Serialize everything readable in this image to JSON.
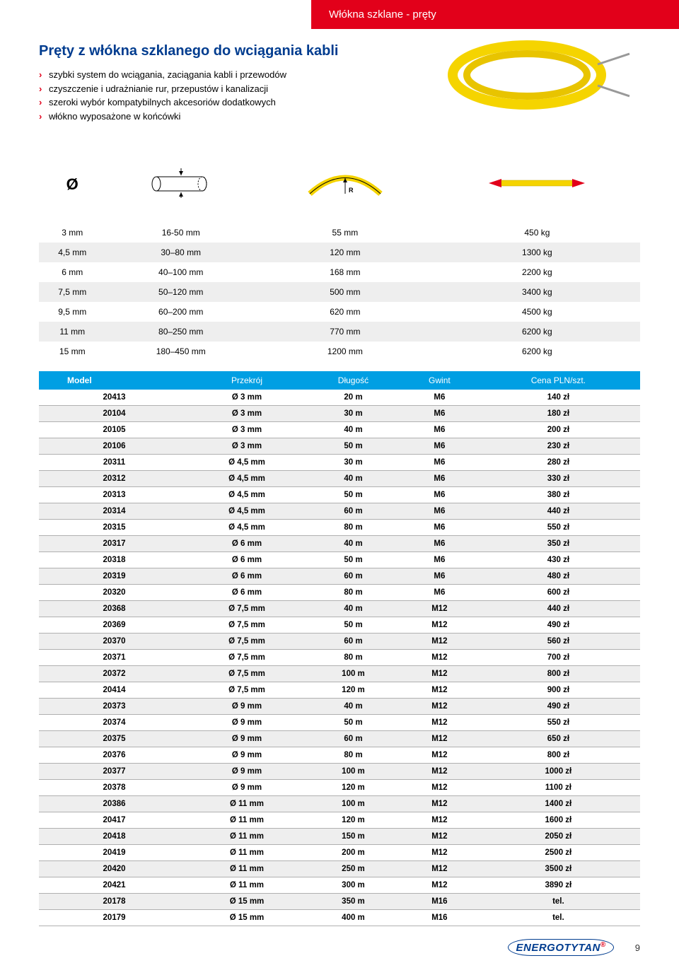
{
  "header_tab": "Włókna szklane - pręty",
  "title": "Pręty z włókna szklanego do wciągania kabli",
  "bullets": [
    "szybki system do wciągania, zaciągania kabli i przewodów",
    "czyszczenie i udrażnianie rur, przepustów i kanalizacji",
    "szeroki wybór kompatybilnych akcesoriów dodatkowych",
    "włókno wyposażone w końcówki"
  ],
  "colors": {
    "brand_red": "#e2001a",
    "brand_blue": "#003c8f",
    "table_blue": "#009fe3",
    "row_alt": "#eeeeee",
    "cable_yellow": "#f5d400"
  },
  "spec_rows": [
    [
      "3 mm",
      "16-50 mm",
      "55 mm",
      "450 kg"
    ],
    [
      "4,5 mm",
      "30–80 mm",
      "120 mm",
      "1300 kg"
    ],
    [
      "6 mm",
      "40–100 mm",
      "168 mm",
      "2200 kg"
    ],
    [
      "7,5 mm",
      "50–120 mm",
      "500 mm",
      "3400 kg"
    ],
    [
      "9,5 mm",
      "60–200 mm",
      "620 mm",
      "4500 kg"
    ],
    [
      "11 mm",
      "80–250 mm",
      "770 mm",
      "6200 kg"
    ],
    [
      "15 mm",
      "180–450 mm",
      "1200 mm",
      "6200 kg"
    ]
  ],
  "price_headers": [
    "Model",
    "Przekrój",
    "Długość",
    "Gwint",
    "Cena PLN/szt."
  ],
  "price_rows": [
    [
      "20413",
      "Ø 3 mm",
      "20 m",
      "M6",
      "140 zł"
    ],
    [
      "20104",
      "Ø 3 mm",
      "30 m",
      "M6",
      "180 zł"
    ],
    [
      "20105",
      "Ø 3 mm",
      "40 m",
      "M6",
      "200 zł"
    ],
    [
      "20106",
      "Ø 3 mm",
      "50 m",
      "M6",
      "230 zł"
    ],
    [
      "20311",
      "Ø 4,5 mm",
      "30 m",
      "M6",
      "280 zł"
    ],
    [
      "20312",
      "Ø 4,5 mm",
      "40 m",
      "M6",
      "330 zł"
    ],
    [
      "20313",
      "Ø 4,5 mm",
      "50 m",
      "M6",
      "380 zł"
    ],
    [
      "20314",
      "Ø 4,5 mm",
      "60 m",
      "M6",
      "440 zł"
    ],
    [
      "20315",
      "Ø 4,5 mm",
      "80 m",
      "M6",
      "550 zł"
    ],
    [
      "20317",
      "Ø 6 mm",
      "40 m",
      "M6",
      "350 zł"
    ],
    [
      "20318",
      "Ø 6 mm",
      "50 m",
      "M6",
      "430 zł"
    ],
    [
      "20319",
      "Ø 6 mm",
      "60 m",
      "M6",
      "480 zł"
    ],
    [
      "20320",
      "Ø 6 mm",
      "80 m",
      "M6",
      "600 zł"
    ],
    [
      "20368",
      "Ø 7,5 mm",
      "40 m",
      "M12",
      "440 zł"
    ],
    [
      "20369",
      "Ø 7,5 mm",
      "50 m",
      "M12",
      "490 zł"
    ],
    [
      "20370",
      "Ø 7,5 mm",
      "60 m",
      "M12",
      "560 zł"
    ],
    [
      "20371",
      "Ø 7,5 mm",
      "80 m",
      "M12",
      "700 zł"
    ],
    [
      "20372",
      "Ø 7,5 mm",
      "100 m",
      "M12",
      "800 zł"
    ],
    [
      "20414",
      "Ø 7,5 mm",
      "120 m",
      "M12",
      "900 zł"
    ],
    [
      "20373",
      "Ø 9 mm",
      "40 m",
      "M12",
      "490 zł"
    ],
    [
      "20374",
      "Ø 9 mm",
      "50 m",
      "M12",
      "550 zł"
    ],
    [
      "20375",
      "Ø 9 mm",
      "60 m",
      "M12",
      "650 zł"
    ],
    [
      "20376",
      "Ø 9 mm",
      "80 m",
      "M12",
      "800 zł"
    ],
    [
      "20377",
      "Ø 9 mm",
      "100 m",
      "M12",
      "1000 zł"
    ],
    [
      "20378",
      "Ø 9 mm",
      "120 m",
      "M12",
      "1100 zł"
    ],
    [
      "20386",
      "Ø 11 mm",
      "100 m",
      "M12",
      "1400 zł"
    ],
    [
      "20417",
      "Ø 11 mm",
      "120 m",
      "M12",
      "1600 zł"
    ],
    [
      "20418",
      "Ø 11 mm",
      "150 m",
      "M12",
      "2050 zł"
    ],
    [
      "20419",
      "Ø 11 mm",
      "200 m",
      "M12",
      "2500 zł"
    ],
    [
      "20420",
      "Ø 11 mm",
      "250 m",
      "M12",
      "3500 zł"
    ],
    [
      "20421",
      "Ø 11 mm",
      "300 m",
      "M12",
      "3890 zł"
    ],
    [
      "20178",
      "Ø 15 mm",
      "350 m",
      "M16",
      "tel."
    ],
    [
      "20179",
      "Ø 15 mm",
      "400 m",
      "M16",
      "tel."
    ]
  ],
  "logo_text": "ENERGOTYTAN",
  "page_number": "9"
}
